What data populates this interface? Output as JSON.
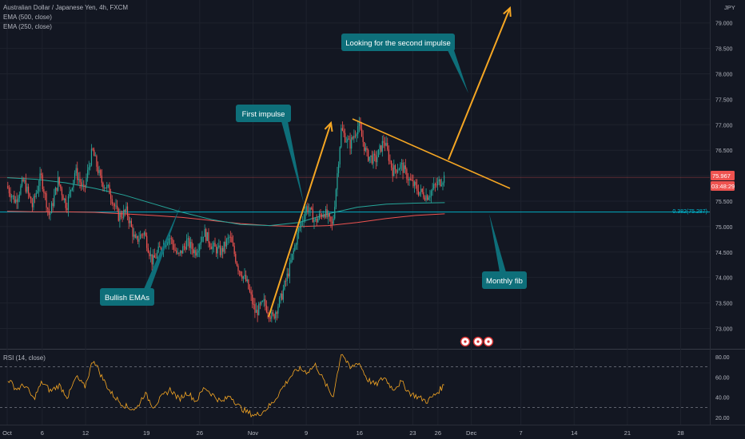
{
  "header": {
    "symbol_title": "Australian Dollar / Japanese Yen, 4h, FXCM",
    "ema_fast_label": "EMA (500, close)",
    "ema_slow_label": "EMA (250, close)",
    "currency": "JPY"
  },
  "rsi_panel": {
    "label": "RSI (14, close)"
  },
  "annotations": {
    "first_impulse": "First impulse",
    "second_impulse": "Looking for the second impulse",
    "bullish_emas": "Bullish EMAs",
    "monthly_fib": "Monthly fib",
    "fib_level_label": "0.382(75.287)"
  },
  "price_badge": {
    "price": "75.967",
    "countdown": "03:48:29"
  },
  "colors": {
    "background": "#131722",
    "up_candle": "#26a69a",
    "down_candle": "#ef5350",
    "ema_500": "#ef5350",
    "ema_250": "#26a69a",
    "annotation_bg": "#0e6f7a",
    "arrow": "#f5a623",
    "fib_line": "#00bcd4",
    "rsi_line": "#f5a623"
  },
  "chart_data": [
    {
      "type": "candlestick",
      "title": "Australian Dollar / Japanese Yen, 4h, FXCM",
      "y_axis_ticks": [
        "79.000",
        "78.500",
        "78.000",
        "77.500",
        "77.000",
        "76.500",
        "76.000",
        "75.500",
        "75.000",
        "74.500",
        "74.000",
        "73.500",
        "73.000"
      ],
      "ylim": [
        72.6,
        79.45
      ],
      "x_axis_ticks": [
        "Oct",
        "6",
        "12",
        "19",
        "26",
        "Nov",
        "9",
        "16",
        "23",
        "26",
        "Dec",
        "7",
        "14",
        "21",
        "28"
      ],
      "x_tick_positions": [
        0,
        4.6,
        10.3,
        18.3,
        25.3,
        32.3,
        39.3,
        46.3,
        53.3,
        56.6,
        61,
        67.5,
        74.5,
        81.5,
        88.5
      ],
      "xlim": [
        0,
        90
      ],
      "series": [
        {
          "name": "price",
          "path": [
            75.8,
            75.5,
            75.9,
            75.4,
            76.0,
            75.2,
            75.9,
            75.4,
            76.1,
            75.7,
            76.5,
            75.9,
            75.7,
            75.2,
            75.3,
            74.7,
            74.9,
            74.3,
            74.6,
            74.8,
            74.4,
            74.7,
            74.5,
            74.9,
            74.6,
            74.5,
            74.8,
            74.2,
            73.9,
            73.3,
            73.5,
            73.2,
            73.6,
            74.2,
            74.9,
            75.4,
            75.1,
            75.3,
            75.0,
            76.9,
            76.6,
            77.0,
            76.4,
            76.3,
            76.7,
            76.1,
            76.2,
            75.9,
            75.7,
            75.6,
            75.8,
            75.97
          ]
        },
        {
          "name": "EMA (500, close)",
          "path": [
            75.3,
            75.29,
            75.29,
            75.28,
            75.25,
            75.22,
            75.18,
            75.12,
            75.06,
            75.02,
            75.0,
            75.02,
            75.08,
            75.16,
            75.22,
            75.25
          ]
        },
        {
          "name": "EMA (250, close)",
          "path": [
            75.96,
            75.93,
            75.86,
            75.75,
            75.62,
            75.45,
            75.28,
            75.14,
            75.04,
            75.02,
            75.08,
            75.25,
            75.38,
            75.44,
            75.46,
            75.47
          ]
        }
      ],
      "horizontal_levels": [
        {
          "label": "0.382(75.287)",
          "value": 75.287
        },
        {
          "value": 75.967
        }
      ]
    },
    {
      "type": "line",
      "title": "RSI (14, close)",
      "y_axis_ticks": [
        "80.00",
        "60.00",
        "40.00",
        "20.00"
      ],
      "ylim": [
        13,
        87
      ],
      "xlim": [
        0,
        90
      ],
      "series": [
        {
          "name": "RSI (14, close)",
          "values": [
            58,
            48,
            52,
            38,
            55,
            46,
            52,
            40,
            60,
            50,
            78,
            60,
            45,
            36,
            30,
            28,
            44,
            31,
            40,
            48,
            38,
            45,
            36,
            50,
            42,
            35,
            42,
            31,
            25,
            22,
            27,
            35,
            48,
            60,
            68,
            65,
            72,
            55,
            40,
            85,
            68,
            75,
            58,
            52,
            60,
            48,
            55,
            44,
            40,
            36,
            43,
            52
          ]
        }
      ],
      "reference_levels": [
        70,
        30
      ]
    }
  ]
}
